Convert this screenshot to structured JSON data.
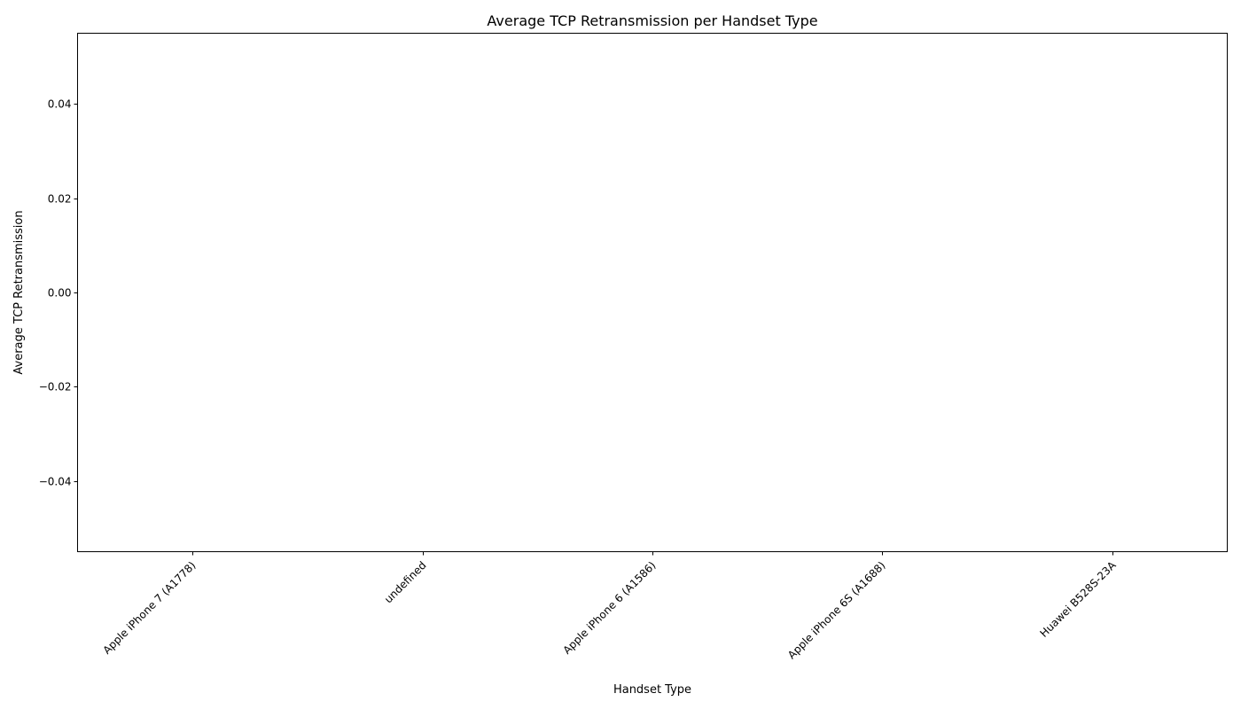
{
  "chart_data": {
    "type": "bar",
    "title": "Average TCP Retransmission per Handset Type",
    "xlabel": "Handset Type",
    "ylabel": "Average TCP Retransmission",
    "categories": [
      "Apple iPhone 7 (A1778)",
      "undefined",
      "Apple iPhone 6 (A1586)",
      "Apple iPhone 6S (A1688)",
      "Huawei B528S-23A"
    ],
    "values": [
      0,
      0,
      0,
      0,
      0
    ],
    "ylim": [
      -0.055,
      0.055
    ],
    "yticks": [
      0.04,
      0.02,
      0.0,
      -0.02,
      -0.04
    ],
    "ytick_labels": [
      "0.04",
      "0.02",
      "0.00",
      "−0.02",
      "−0.04"
    ],
    "grid": false,
    "legend": "none",
    "bar_color": "#1f77b4"
  }
}
